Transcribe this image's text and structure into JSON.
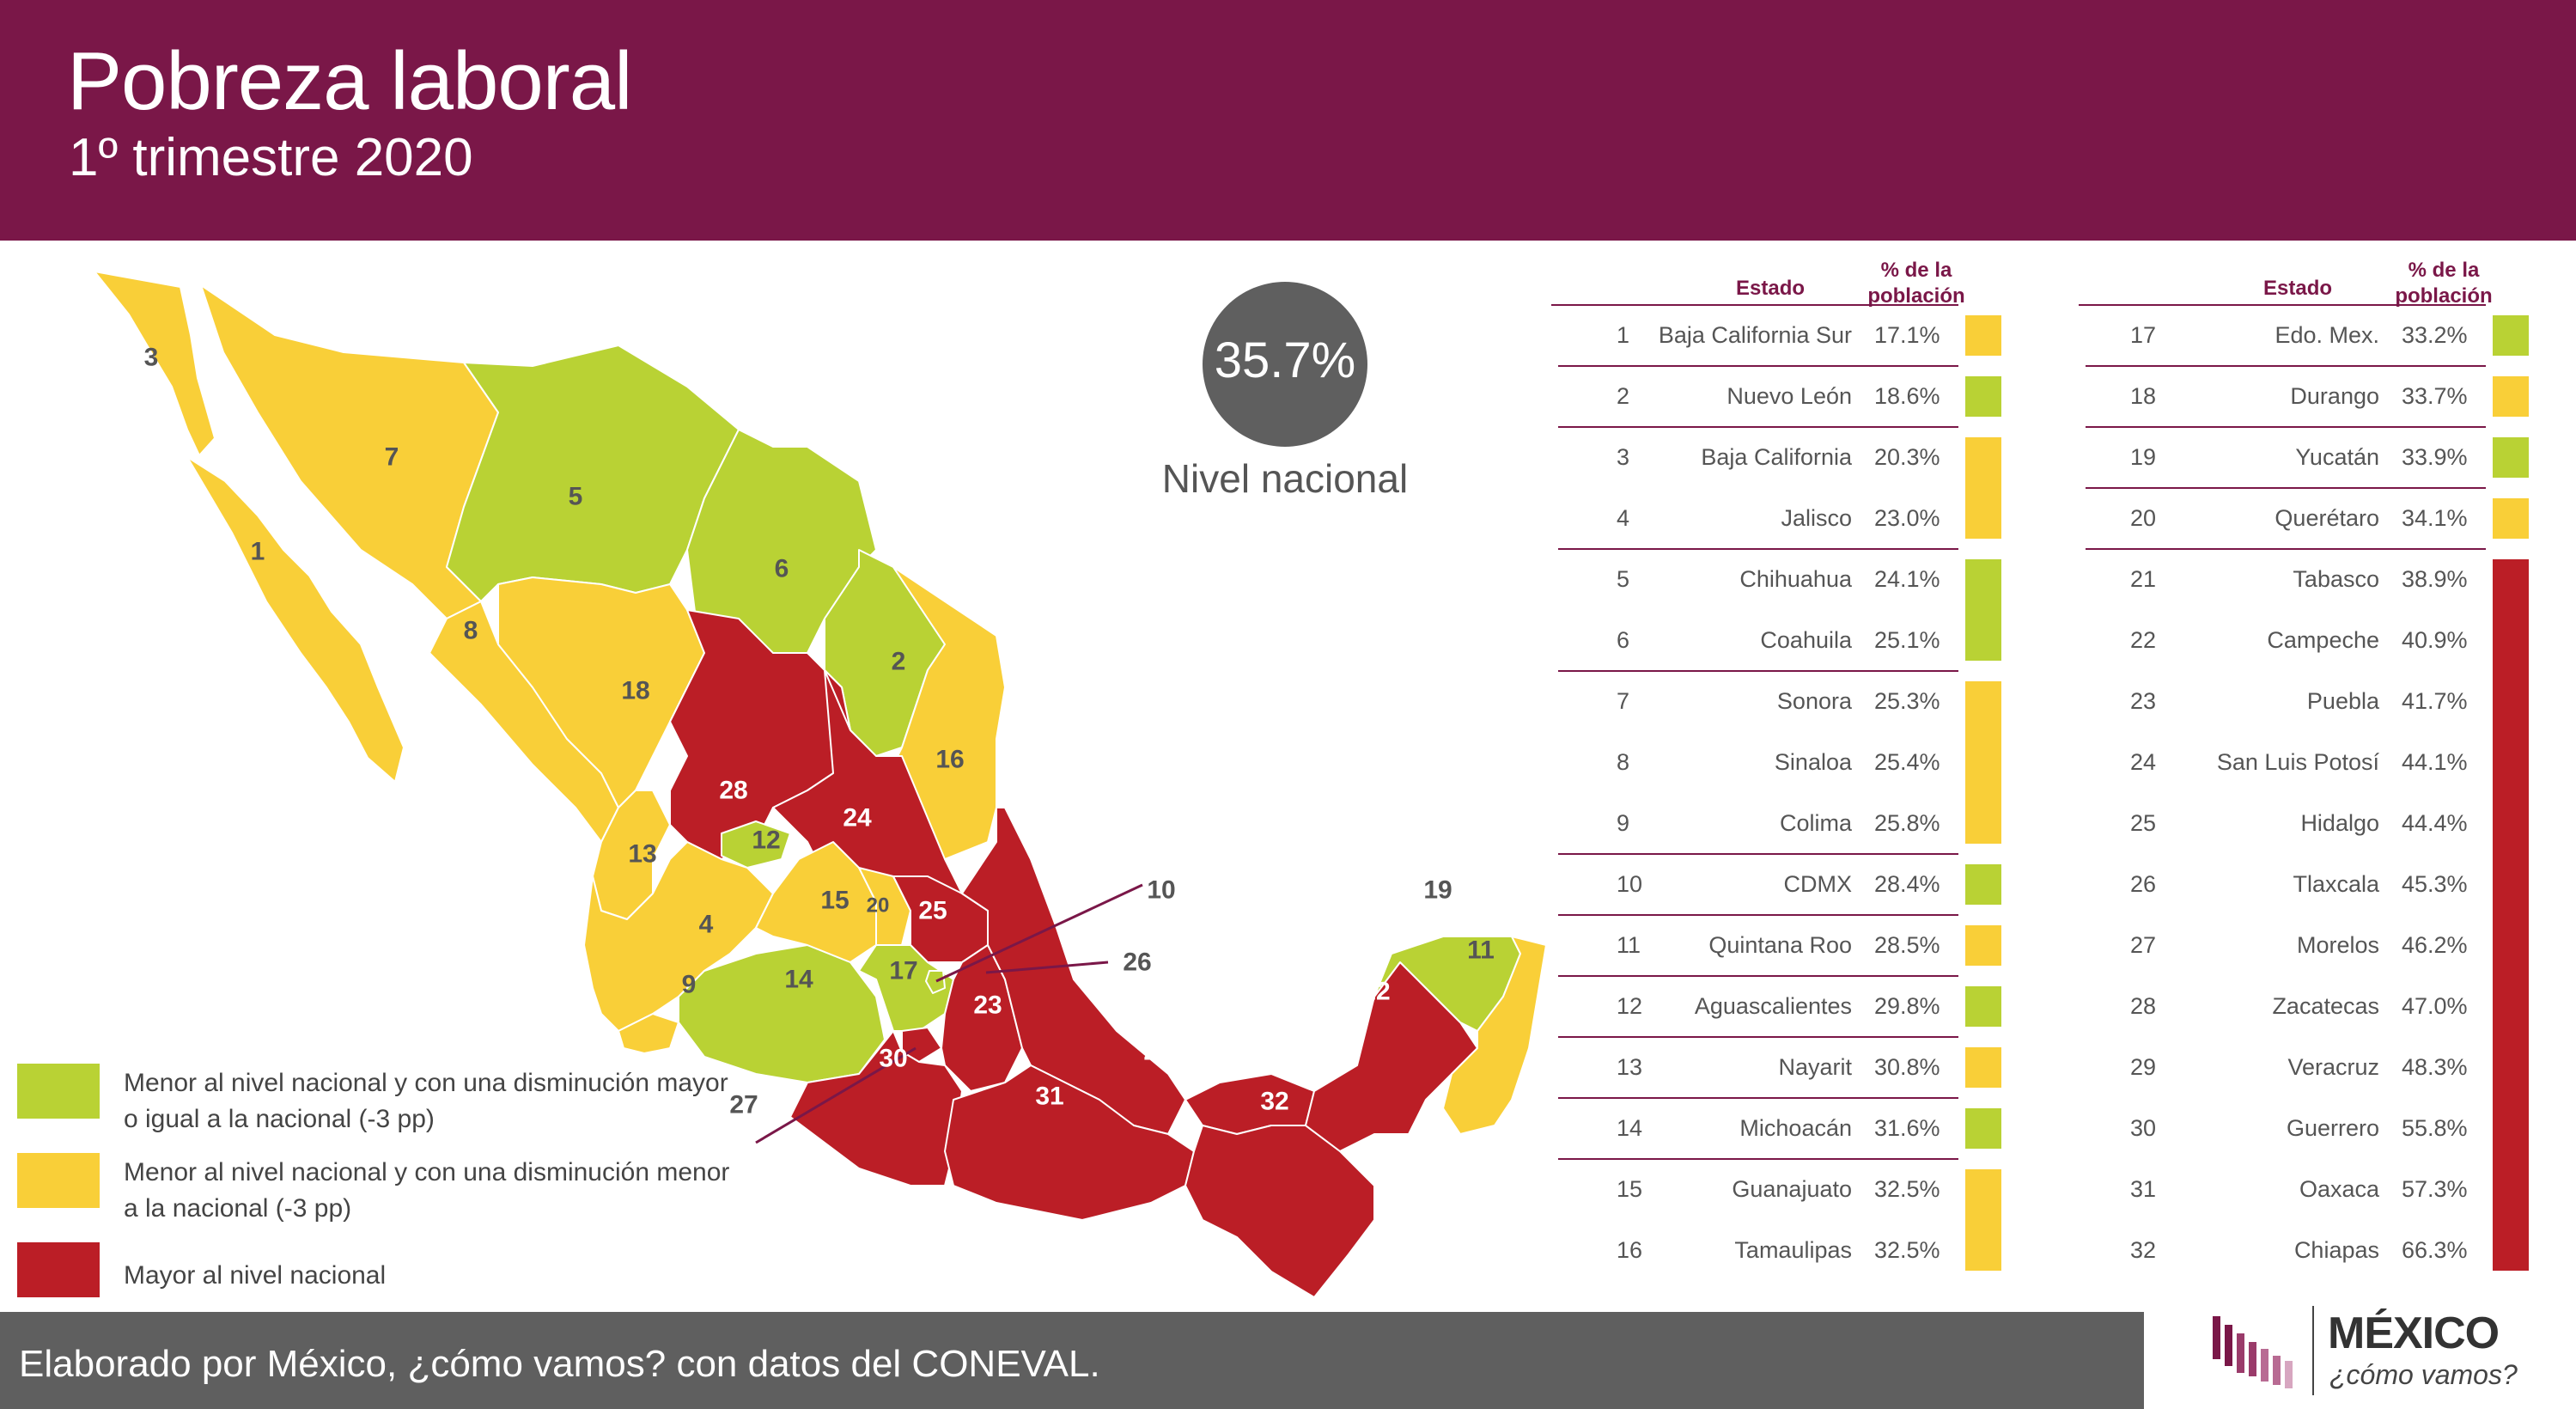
{
  "header": {
    "title": "Pobreza laboral",
    "subtitle": "1º trimestre 2020"
  },
  "national": {
    "value": "35.7%",
    "label": "Nivel nacional"
  },
  "colors": {
    "green": "#b9d234",
    "yellow": "#f9cf38",
    "red": "#bb1e26",
    "brand": "#7a1748",
    "footer": "#5f5f5f"
  },
  "legend": [
    {
      "color": "green",
      "text": "Menor al nivel nacional y con una disminución mayor o igual a la nacional (-3 pp)"
    },
    {
      "color": "yellow",
      "text": "Menor al nivel nacional y con una disminución menor a la nacional (-3 pp)"
    },
    {
      "color": "red",
      "text": "Mayor al nivel nacional"
    }
  ],
  "table_headers": {
    "estado": "Estado",
    "pct": "% de la población"
  },
  "states": [
    {
      "rank": "1",
      "name": "Baja California Sur",
      "value": "17.1%",
      "color": "yellow"
    },
    {
      "rank": "2",
      "name": "Nuevo León",
      "value": "18.6%",
      "color": "green"
    },
    {
      "rank": "3",
      "name": "Baja California",
      "value": "20.3%",
      "color": "yellow"
    },
    {
      "rank": "4",
      "name": "Jalisco",
      "value": "23.0%",
      "color": "yellow"
    },
    {
      "rank": "5",
      "name": "Chihuahua",
      "value": "24.1%",
      "color": "green"
    },
    {
      "rank": "6",
      "name": "Coahuila",
      "value": "25.1%",
      "color": "green"
    },
    {
      "rank": "7",
      "name": "Sonora",
      "value": "25.3%",
      "color": "yellow"
    },
    {
      "rank": "8",
      "name": "Sinaloa",
      "value": "25.4%",
      "color": "yellow"
    },
    {
      "rank": "9",
      "name": "Colima",
      "value": "25.8%",
      "color": "yellow"
    },
    {
      "rank": "10",
      "name": "CDMX",
      "value": "28.4%",
      "color": "green"
    },
    {
      "rank": "11",
      "name": "Quintana Roo",
      "value": "28.5%",
      "color": "yellow"
    },
    {
      "rank": "12",
      "name": "Aguascalientes",
      "value": "29.8%",
      "color": "green"
    },
    {
      "rank": "13",
      "name": "Nayarit",
      "value": "30.8%",
      "color": "yellow"
    },
    {
      "rank": "14",
      "name": "Michoacán",
      "value": "31.6%",
      "color": "green"
    },
    {
      "rank": "15",
      "name": "Guanajuato",
      "value": "32.5%",
      "color": "yellow"
    },
    {
      "rank": "16",
      "name": "Tamaulipas",
      "value": "32.5%",
      "color": "yellow"
    },
    {
      "rank": "17",
      "name": "Edo. Mex.",
      "value": "33.2%",
      "color": "green"
    },
    {
      "rank": "18",
      "name": "Durango",
      "value": "33.7%",
      "color": "yellow"
    },
    {
      "rank": "19",
      "name": "Yucatán",
      "value": "33.9%",
      "color": "green"
    },
    {
      "rank": "20",
      "name": "Querétaro",
      "value": "34.1%",
      "color": "yellow"
    },
    {
      "rank": "21",
      "name": "Tabasco",
      "value": "38.9%",
      "color": "red"
    },
    {
      "rank": "22",
      "name": "Campeche",
      "value": "40.9%",
      "color": "red"
    },
    {
      "rank": "23",
      "name": "Puebla",
      "value": "41.7%",
      "color": "red"
    },
    {
      "rank": "24",
      "name": "San Luis Potosí",
      "value": "44.1%",
      "color": "red"
    },
    {
      "rank": "25",
      "name": "Hidalgo",
      "value": "44.4%",
      "color": "red"
    },
    {
      "rank": "26",
      "name": "Tlaxcala",
      "value": "45.3%",
      "color": "red"
    },
    {
      "rank": "27",
      "name": "Morelos",
      "value": "46.2%",
      "color": "red"
    },
    {
      "rank": "28",
      "name": "Zacatecas",
      "value": "47.0%",
      "color": "red"
    },
    {
      "rank": "29",
      "name": "Veracruz",
      "value": "48.3%",
      "color": "red"
    },
    {
      "rank": "30",
      "name": "Guerrero",
      "value": "55.8%",
      "color": "red"
    },
    {
      "rank": "31",
      "name": "Oaxaca",
      "value": "57.3%",
      "color": "red"
    },
    {
      "rank": "32",
      "name": "Chiapas",
      "value": "66.3%",
      "color": "red"
    }
  ],
  "footer": {
    "text": "Elaborado por México, ¿cómo vamos? con datos del CONEVAL."
  },
  "logo": {
    "word": "MÉXICO",
    "sub": "¿cómo vamos?"
  }
}
